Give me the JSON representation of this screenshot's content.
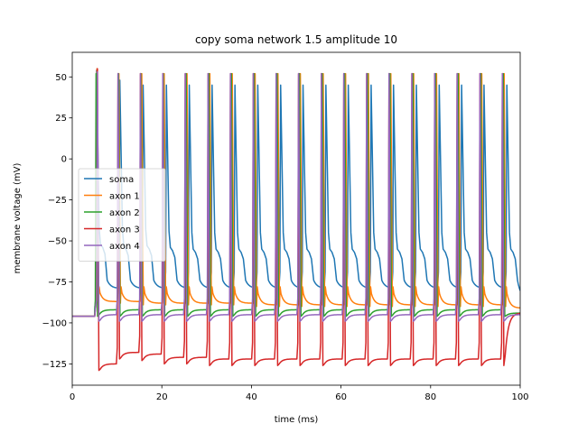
{
  "chart_data": {
    "type": "line",
    "title": "copy soma network 1.5 amplitude 10",
    "xlabel": "time (ms)",
    "ylabel": "membrane voltage (mV)",
    "xlim": [
      0,
      100
    ],
    "ylim": [
      -138,
      65
    ],
    "xticks": [
      0,
      20,
      40,
      60,
      80,
      100
    ],
    "yticks": [
      -125,
      -100,
      -75,
      -50,
      -25,
      0,
      25,
      50
    ],
    "grid": false,
    "legend_position": "center-left",
    "resting_voltage": -96,
    "stimulus_onset_ms": 5,
    "series": [
      {
        "name": "soma",
        "color": "#1f77b4",
        "spike_times": [
          5.3,
          10.5,
          15.7,
          20.9,
          26.0,
          31.1,
          36.2,
          41.3,
          46.4,
          51.4,
          56.5,
          61.5,
          66.6,
          71.6,
          76.7,
          81.8,
          86.8,
          91.8,
          96.9
        ],
        "peaks": [
          54,
          48,
          45,
          45,
          45,
          45,
          45,
          45,
          45,
          45,
          45,
          45,
          45,
          45,
          45,
          45,
          45,
          45,
          45
        ],
        "troughs": [
          -80,
          -80,
          -80,
          -80,
          -80,
          -80,
          -80,
          -80,
          -80,
          -80,
          -80,
          -80,
          -80,
          -80,
          -80,
          -80,
          -80,
          -80,
          -80
        ],
        "plateaus": [
          -54,
          -55,
          -55,
          -56,
          -57,
          -57,
          -57,
          -57,
          -57,
          -57,
          -57,
          -57,
          -57,
          -57,
          -57,
          -57,
          -57,
          -57,
          -57
        ],
        "final_value": -86
      },
      {
        "name": "axon 1",
        "color": "#ff7f0e",
        "spike_times": [
          5.4,
          10.3,
          15.4,
          20.4,
          25.5,
          30.6,
          35.6,
          40.7,
          45.8,
          50.8,
          55.9,
          60.9,
          66.0,
          71.0,
          76.1,
          81.2,
          86.2,
          91.3,
          96.3
        ],
        "peaks": [
          55,
          52,
          52,
          52,
          52,
          52,
          52,
          52,
          52,
          52,
          52,
          52,
          52,
          52,
          52,
          52,
          52,
          52,
          52
        ],
        "troughs": [
          -88,
          -88,
          -89,
          -89,
          -89,
          -89,
          -89,
          -90,
          -90,
          -90,
          -90,
          -90,
          -90,
          -90,
          -90,
          -90,
          -90,
          -90,
          -90
        ],
        "final_value": -91
      },
      {
        "name": "axon 2",
        "color": "#2ca02c",
        "spike_times": [
          5.2,
          10.2,
          15.2,
          20.2,
          25.3,
          30.4,
          35.4,
          40.5,
          45.6,
          50.6,
          55.7,
          60.7,
          65.8,
          70.8,
          75.9,
          81.0,
          86.0,
          91.1,
          96.1
        ],
        "peaks": [
          52,
          52,
          52,
          52,
          52,
          52,
          52,
          52,
          52,
          52,
          52,
          52,
          52,
          52,
          52,
          52,
          52,
          52,
          52
        ],
        "troughs": [
          -96,
          -96,
          -96,
          -96,
          -96,
          -96,
          -96,
          -96,
          -96,
          -96,
          -96,
          -96,
          -96,
          -96,
          -96,
          -96,
          -96,
          -96,
          -96
        ],
        "final_value": -94
      },
      {
        "name": "axon 3",
        "color": "#d62728",
        "spike_times": [
          5.5,
          10.1,
          15.1,
          20.1,
          25.1,
          30.2,
          35.2,
          40.3,
          45.4,
          50.4,
          55.5,
          60.5,
          65.6,
          70.6,
          75.7,
          80.8,
          85.8,
          90.9,
          95.9
        ],
        "peaks": [
          55,
          52,
          52,
          52,
          52,
          52,
          52,
          52,
          52,
          52,
          52,
          52,
          52,
          52,
          52,
          52,
          52,
          52,
          52
        ],
        "troughs": [
          -129,
          -122,
          -123,
          -125,
          -125,
          -126,
          -126,
          -126,
          -126,
          -126,
          -126,
          -126,
          -126,
          -126,
          -126,
          -126,
          -126,
          -126,
          -126
        ],
        "final_value": -94
      },
      {
        "name": "axon 4",
        "color": "#9467bd",
        "spike_times": [
          5.5,
          10.1,
          15.1,
          20.1,
          25.1,
          30.2,
          35.2,
          40.3,
          45.4,
          50.4,
          55.5,
          60.5,
          65.6,
          70.6,
          75.7,
          80.8,
          85.8,
          90.9,
          95.9
        ],
        "peaks": [
          53,
          52,
          52,
          52,
          52,
          52,
          52,
          52,
          52,
          52,
          52,
          52,
          52,
          52,
          52,
          52,
          52,
          52,
          52
        ],
        "troughs": [
          -99,
          -99,
          -99,
          -99,
          -99,
          -99,
          -99,
          -99,
          -99,
          -99,
          -99,
          -99,
          -99,
          -99,
          -99,
          -99,
          -99,
          -99,
          -99
        ],
        "final_value": -95
      }
    ]
  }
}
